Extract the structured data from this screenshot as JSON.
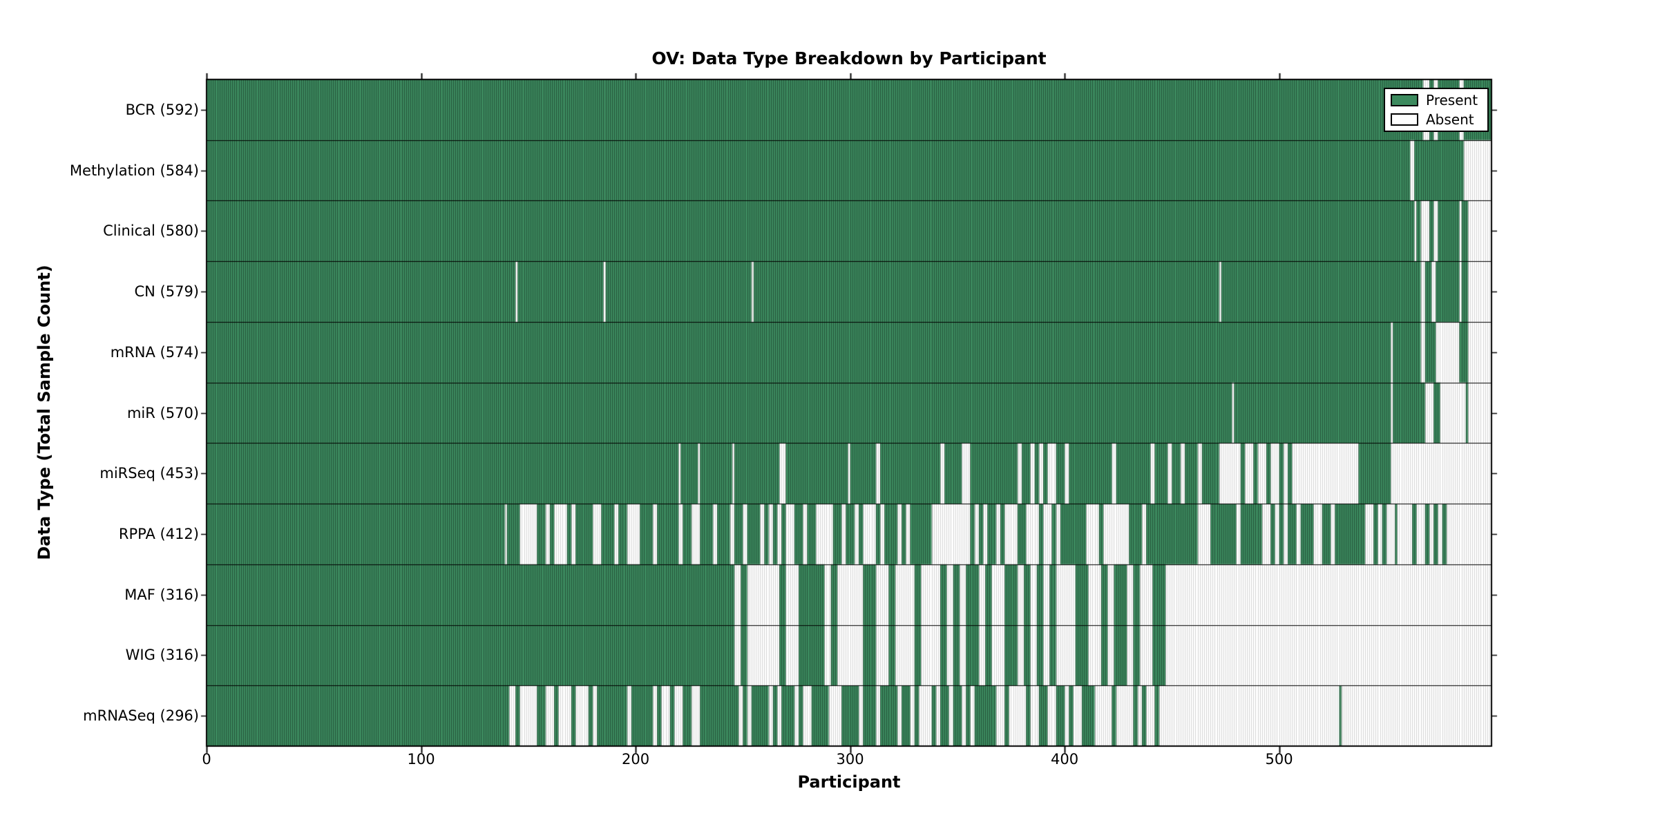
{
  "figure": {
    "title": "OV: Data Type Breakdown by Participant",
    "xlabel": "Participant",
    "ylabel": "Data Type (Total Sample Count)"
  },
  "legend": {
    "items": [
      {
        "label": "Present",
        "color": "#3c8a5e"
      },
      {
        "label": "Absent",
        "color": "#ffffff"
      }
    ]
  },
  "chart_data": {
    "type": "heatmap",
    "title": "OV: Data Type Breakdown by Participant",
    "xlabel": "Participant",
    "ylabel": "Data Type (Total Sample Count)",
    "cell_states": [
      "Present",
      "Absent"
    ],
    "colors": {
      "present": "#3c8a5e",
      "absent": "#ffffff",
      "frame": "#000000"
    },
    "n_participants": 599,
    "x_axis": {
      "ticks": [
        0,
        100,
        200,
        300,
        400,
        500
      ],
      "range": [
        0,
        599
      ]
    },
    "legend_position": "upper right",
    "grid": "row separators",
    "segments_format": "[start_participant, end_participant_exclusive, fraction_present] for striped mixed regions; absent_ranges/present_ranges = [start, end_exclusive] explicit runs",
    "rows": [
      {
        "label": "BCR (592)",
        "data_type": "BCR",
        "count": 592,
        "absent_ranges": [
          [
            567,
            570
          ],
          [
            572,
            574
          ],
          [
            584,
            586
          ]
        ]
      },
      {
        "label": "Methylation (584)",
        "data_type": "Methylation",
        "count": 584,
        "absent_ranges": [
          [
            561,
            563
          ],
          [
            586,
            599
          ]
        ]
      },
      {
        "label": "Clinical (580)",
        "data_type": "Clinical",
        "count": 580,
        "absent_ranges": [
          [
            563,
            564
          ],
          [
            566,
            570
          ],
          [
            572,
            574
          ],
          [
            584,
            585
          ],
          [
            588,
            599
          ]
        ]
      },
      {
        "label": "CN (579)",
        "data_type": "CN",
        "count": 579,
        "absent_ranges": [
          [
            144,
            145
          ],
          [
            185,
            186
          ],
          [
            254,
            255
          ],
          [
            472,
            473
          ],
          [
            566,
            568
          ],
          [
            571,
            573
          ],
          [
            584,
            585
          ],
          [
            588,
            599
          ]
        ]
      },
      {
        "label": "mRNA (574)",
        "data_type": "mRNA",
        "count": 574,
        "absent_ranges": [
          [
            552,
            553
          ],
          [
            566,
            568
          ],
          [
            573,
            584
          ],
          [
            588,
            599
          ]
        ]
      },
      {
        "label": "miR (570)",
        "data_type": "miR",
        "count": 570,
        "absent_ranges": [
          [
            478,
            479
          ],
          [
            552,
            553
          ],
          [
            568,
            572
          ],
          [
            575,
            587
          ],
          [
            588,
            599
          ]
        ]
      },
      {
        "label": "miRSeq (453)",
        "data_type": "miRSeq",
        "count": 453,
        "absent_ranges": [
          [
            220,
            221
          ],
          [
            229,
            230
          ],
          [
            245,
            246
          ],
          [
            267,
            270
          ],
          [
            299,
            300
          ]
        ],
        "segments": [
          [
            300,
            460,
            0.8
          ],
          [
            460,
            509,
            0.35
          ],
          [
            509,
            537,
            0.07
          ],
          [
            537,
            553,
            0.8
          ],
          [
            553,
            599,
            0.02
          ]
        ],
        "block": 2,
        "seed": 7
      },
      {
        "label": "RPPA (412)",
        "data_type": "RPPA",
        "count": 412,
        "segments": [
          [
            139,
            230,
            0.55
          ],
          [
            230,
            340,
            0.68
          ],
          [
            340,
            447,
            0.52
          ],
          [
            447,
            480,
            0.88
          ],
          [
            480,
            509,
            0.6
          ],
          [
            509,
            555,
            0.75
          ],
          [
            555,
            575,
            0.45
          ],
          [
            575,
            599,
            0.08
          ]
        ],
        "block": 2,
        "seed": 5
      },
      {
        "label": "MAF (316)",
        "data_type": "MAF",
        "count": 316,
        "segments": [
          [
            245,
            447,
            0.34
          ],
          [
            447,
            460,
            0.3
          ],
          [
            460,
            599,
            0.0
          ]
        ],
        "block": 3,
        "seed": 8
      },
      {
        "label": "WIG (316)",
        "data_type": "WIG",
        "count": 316,
        "segments": [
          [
            245,
            447,
            0.34
          ],
          [
            447,
            460,
            0.3
          ],
          [
            460,
            599,
            0.0
          ]
        ],
        "block": 3,
        "seed": 8
      },
      {
        "label": "mRNASeq (296)",
        "data_type": "mRNASeq",
        "count": 296,
        "segments": [
          [
            141,
            230,
            0.5
          ],
          [
            230,
            320,
            0.62
          ],
          [
            320,
            447,
            0.48
          ],
          [
            447,
            599,
            0.0
          ]
        ],
        "present_ranges": [
          [
            528,
            529
          ]
        ],
        "block": 2,
        "seed": 11
      }
    ]
  }
}
